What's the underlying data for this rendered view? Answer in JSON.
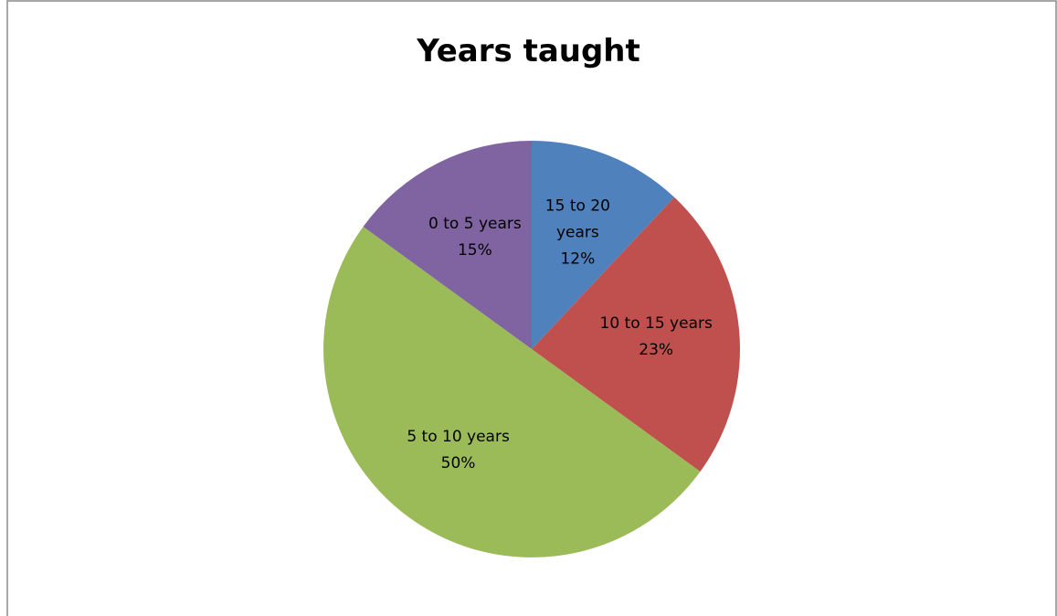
{
  "chart_data": {
    "type": "pie",
    "title": "Years taught",
    "categories": [
      "15 to 20 years",
      "10 to 15 years",
      "5 to 10 years",
      "0 to 5 years"
    ],
    "values": [
      12,
      23,
      50,
      15
    ],
    "value_labels": [
      "12%",
      "23%",
      "50%",
      "15%"
    ],
    "colors": [
      "#4f81bd",
      "#c0504d",
      "#9bbb59",
      "#8064a2"
    ]
  }
}
